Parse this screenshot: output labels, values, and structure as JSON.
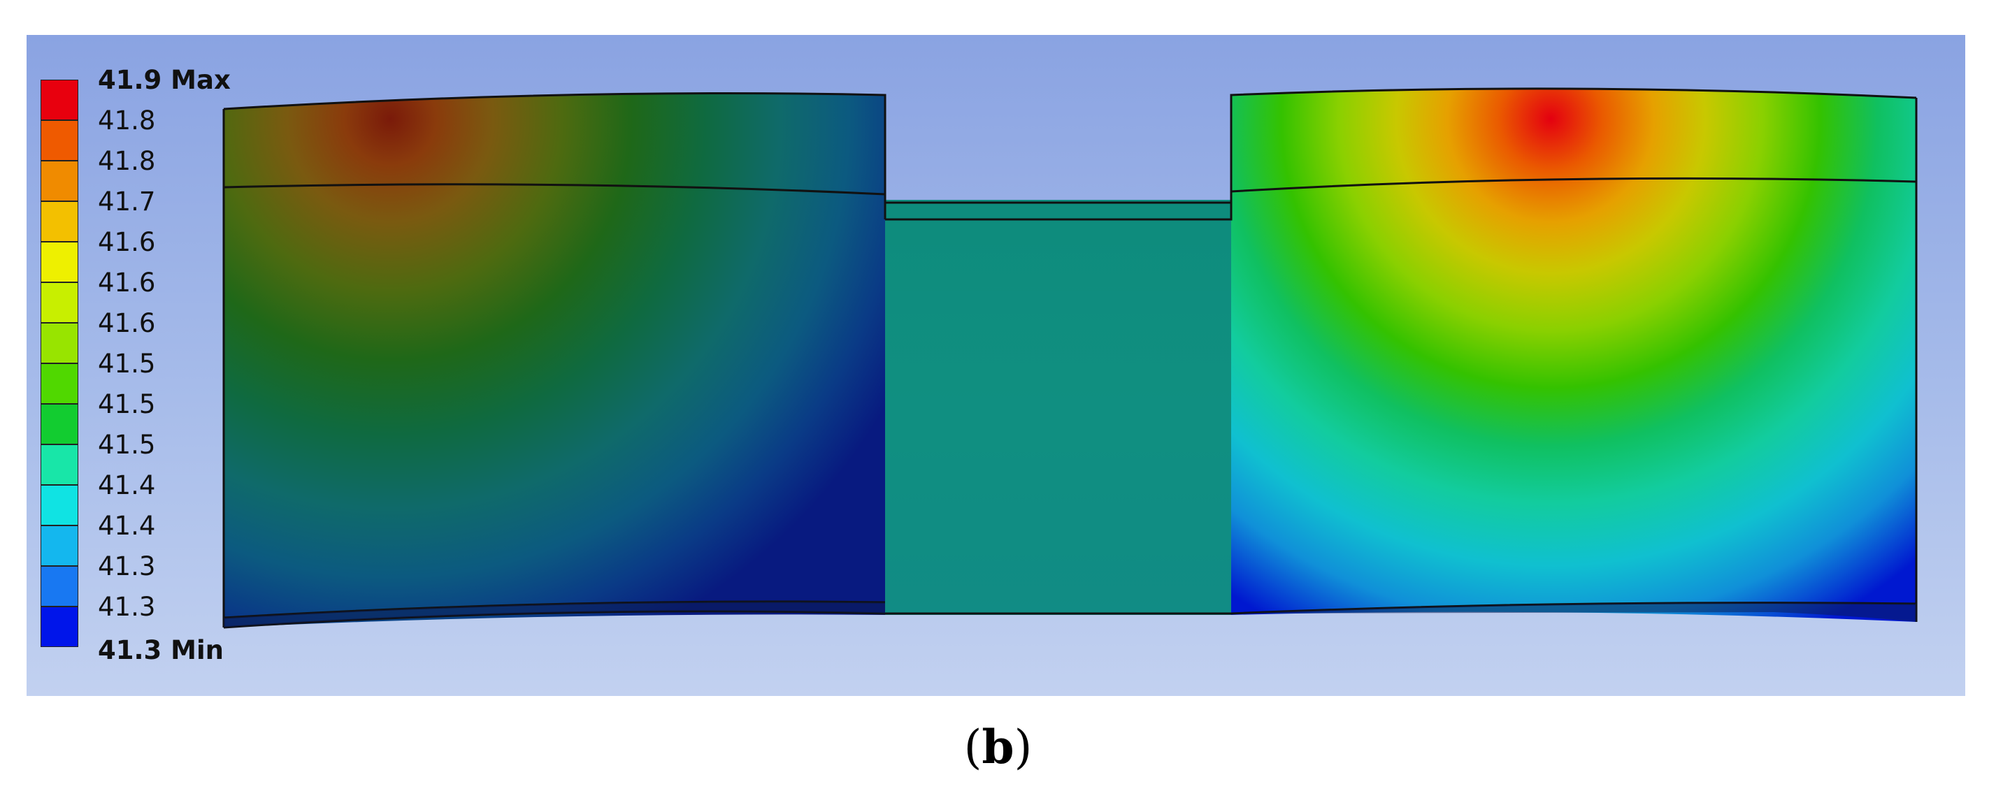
{
  "legend": {
    "max_label": "41.9 Max",
    "min_label": "41.3 Min",
    "entries": [
      "41.8",
      "41.8",
      "41.7",
      "41.6",
      "41.6",
      "41.6",
      "41.5",
      "41.5",
      "41.5",
      "41.4",
      "41.4",
      "41.3",
      "41.3"
    ],
    "colors": [
      "#e8000e",
      "#ef5a00",
      "#f08b00",
      "#f3c000",
      "#eef000",
      "#c8ef00",
      "#98e400",
      "#50d800",
      "#12cc30",
      "#18e6a8",
      "#10e3e3",
      "#14b7ee",
      "#1878f2",
      "#0015ea"
    ]
  },
  "caption": {
    "open": "(",
    "letter": "b",
    "close": ")"
  }
}
